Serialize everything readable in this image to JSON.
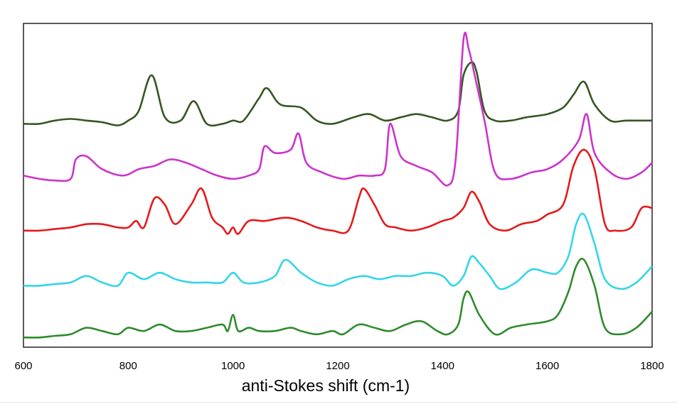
{
  "chart_data": {
    "type": "line",
    "title": "",
    "xlabel": "anti-Stokes shift (cm-1)",
    "ylabel": "",
    "xlim": [
      600,
      1800
    ],
    "ylim": [
      0,
      100
    ],
    "x_ticks": [
      600,
      800,
      1000,
      1200,
      1400,
      1600,
      1800
    ],
    "x_tick_labels": [
      "600",
      "800",
      "1000",
      "1200",
      "1400",
      "1600",
      "1800"
    ],
    "y_ticks_shown": false,
    "grid": false,
    "legend": "none",
    "series": [
      {
        "color": "#375623",
        "x": [
          600,
          630,
          660,
          690,
          720,
          750,
          780,
          800,
          820,
          845,
          870,
          900,
          925,
          950,
          980,
          1000,
          1020,
          1050,
          1065,
          1090,
          1130,
          1160,
          1190,
          1230,
          1260,
          1290,
          1320,
          1350,
          1380,
          1410,
          1430,
          1440,
          1455,
          1465,
          1480,
          1500,
          1530,
          1560,
          1600,
          1630,
          1650,
          1670,
          1690,
          1720,
          1750,
          1780,
          1800
        ],
        "y": [
          69,
          69,
          70,
          70.5,
          70,
          69.5,
          68.5,
          70,
          73,
          84,
          71,
          70,
          76,
          69,
          69,
          70,
          70,
          77,
          80,
          75,
          74,
          70,
          69,
          71,
          72,
          70,
          71,
          72,
          71,
          70,
          73,
          84,
          88,
          85,
          73,
          70,
          70,
          71,
          72,
          74,
          78,
          82,
          75,
          70,
          70,
          70,
          70
        ]
      },
      {
        "color": "#CC33CC",
        "x": [
          600,
          630,
          660,
          690,
          700,
          720,
          750,
          790,
          820,
          850,
          880,
          910,
          940,
          970,
          1000,
          1030,
          1050,
          1060,
          1080,
          1110,
          1125,
          1140,
          1170,
          1210,
          1240,
          1270,
          1290,
          1300,
          1320,
          1350,
          1380,
          1410,
          1425,
          1440,
          1450,
          1460,
          1480,
          1500,
          1530,
          1570,
          1600,
          1630,
          1660,
          1675,
          1690,
          1720,
          1750,
          1780,
          1800
        ],
        "y": [
          53,
          52,
          51.5,
          52,
          58,
          59,
          55,
          53,
          55,
          56,
          58,
          57,
          55,
          53,
          52,
          53,
          55,
          62,
          60,
          61,
          66,
          57,
          54,
          52,
          53,
          53,
          55,
          69,
          59,
          56,
          54,
          50,
          58,
          95,
          92,
          85,
          70,
          54,
          52,
          54,
          55,
          58,
          64,
          72,
          60,
          54,
          52,
          54,
          57
        ]
      },
      {
        "color": "#E41A1C",
        "x": [
          600,
          630,
          660,
          690,
          720,
          750,
          780,
          800,
          815,
          830,
          850,
          870,
          890,
          920,
          940,
          960,
          980,
          990,
          1000,
          1010,
          1030,
          1060,
          1100,
          1130,
          1160,
          1190,
          1220,
          1240,
          1250,
          1270,
          1290,
          1310,
          1340,
          1370,
          1400,
          1420,
          1440,
          1455,
          1470,
          1490,
          1520,
          1550,
          1580,
          1600,
          1630,
          1650,
          1670,
          1690,
          1710,
          1730,
          1760,
          1780,
          1800
        ],
        "y": [
          36,
          36,
          36.5,
          37,
          38,
          38,
          37,
          37,
          39,
          37,
          46,
          44,
          38,
          44,
          49,
          40,
          37,
          35,
          37,
          35,
          39,
          39,
          40,
          39,
          37,
          36,
          36,
          46,
          49,
          44,
          38,
          37,
          36,
          37,
          39,
          40,
          43,
          48,
          45,
          38,
          36,
          38,
          39,
          41,
          44,
          56,
          61,
          55,
          38,
          36,
          37,
          43,
          43
        ]
      },
      {
        "color": "#33D6E6",
        "x": [
          600,
          630,
          660,
          690,
          720,
          750,
          780,
          800,
          830,
          860,
          890,
          920,
          950,
          980,
          1000,
          1020,
          1050,
          1080,
          1100,
          1130,
          1160,
          1190,
          1220,
          1250,
          1280,
          1310,
          1340,
          1370,
          1400,
          1420,
          1440,
          1455,
          1470,
          1490,
          1510,
          1540,
          1570,
          1600,
          1620,
          1640,
          1655,
          1670,
          1690,
          1710,
          1740,
          1770,
          1800
        ],
        "y": [
          19,
          19,
          19.5,
          20,
          22,
          20,
          19,
          23,
          21,
          23,
          21,
          20,
          20,
          20,
          23,
          20,
          20,
          22,
          27,
          23,
          20,
          19,
          21,
          22,
          21,
          22,
          22,
          23,
          22,
          19,
          22,
          28,
          26,
          22,
          18,
          20,
          24,
          23,
          23,
          28,
          38,
          41,
          32,
          21,
          18,
          20,
          25
        ]
      },
      {
        "color": "#2E8B2E",
        "x": [
          600,
          630,
          660,
          690,
          720,
          750,
          780,
          800,
          830,
          860,
          890,
          920,
          950,
          980,
          990,
          1000,
          1010,
          1030,
          1050,
          1080,
          1110,
          1130,
          1160,
          1190,
          1210,
          1240,
          1270,
          1300,
          1330,
          1360,
          1390,
          1410,
          1430,
          1440,
          1450,
          1470,
          1500,
          1530,
          1560,
          1600,
          1620,
          1640,
          1655,
          1670,
          1690,
          1710,
          1740,
          1770,
          1800
        ],
        "y": [
          3,
          3,
          3.5,
          4,
          6,
          5,
          4,
          6,
          5,
          7,
          5,
          5,
          6,
          7,
          5,
          10,
          5,
          6,
          5,
          5,
          6,
          5,
          4,
          5,
          4,
          7,
          6,
          5,
          7,
          8,
          5,
          4,
          7,
          15,
          17,
          10,
          4,
          6,
          7,
          8,
          10,
          17,
          25,
          27,
          19,
          6,
          4,
          6,
          11
        ]
      }
    ]
  }
}
